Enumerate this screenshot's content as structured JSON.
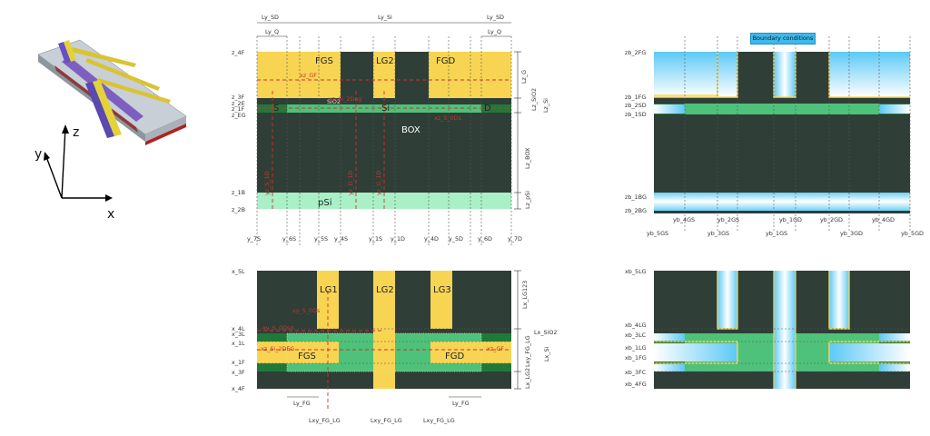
{
  "boundary_badge": "Boundary conditions",
  "axes3d": {
    "y": "y",
    "z": "z",
    "x": "x"
  },
  "cross": {
    "top_dims": {
      "ly_sd_l": "Ly_SD",
      "ly_si": "Ly_Si",
      "ly_sd_r": "Ly_SD",
      "ly_q_l": "Ly_Q",
      "ly_q_r": "Ly_Q"
    },
    "z_labels": {
      "z4f": "z_4F",
      "z3f": "z_3F",
      "z2e": "z_2E",
      "z1f": "z_1F",
      "zeg": "z_EG",
      "z1b": "z_1B",
      "z2b": "z_2B"
    },
    "regions": {
      "fgs": "FGS",
      "lg2": "LG2",
      "fgd": "FGD",
      "sio2": "SiO2",
      "s": "S",
      "si": "Si",
      "d": "D",
      "box": "BOX",
      "psi": "pSi"
    },
    "right_dims": {
      "lzg": "Lz_G",
      "lzsio2": "Lz_SiO2",
      "lzsi": "Lz_Si",
      "lzbox": "Lz_BOX",
      "lzpsi": "Lz_pSi"
    },
    "red": {
      "xzgf": "xz_GF",
      "e1": "xz_S_0Ds",
      "e2": "xz_Si_2Deg",
      "v1": "yz_S_1D",
      "v2": "yz_G_1D",
      "v3": "yz_D_1D"
    }
  },
  "y_ticks": {
    "y7s": "y_7S",
    "y6s": "y_6S",
    "y5s": "y_5S",
    "y4s": "y_4S",
    "y1s": "y_1S",
    "y1d": "y_1D",
    "y4d": "y_4D",
    "y5d": "y_5D",
    "y6d": "y_6D",
    "y7d": "y_7D"
  },
  "plan": {
    "x_labels": {
      "x5l": "x_5L",
      "x4l": "x_4L",
      "x3l": "x_3L",
      "x1l": "x_1L",
      "x1f": "x_1F",
      "x3f": "x_3F",
      "x4f": "x_4F"
    },
    "regions": {
      "lg1": "LG1",
      "lg2": "LG2",
      "lg3": "LG3",
      "fgs": "FGS",
      "fgd": "FGD"
    },
    "right_dims": {
      "lxlg123": "Lx_LG123",
      "lxsio2": "Lx_SiO2",
      "lxyfglg": "Lxy_FG_LG",
      "lxsi": "Lx_Si",
      "lxlg2": "Lx_LG2"
    },
    "red": {
      "r1": "xy_S_0Ds",
      "r2": "xy_S_0Dsd",
      "r3": "xz_Si_2DEG",
      "r4": "xz_GF"
    },
    "bottom_dims": {
      "lyfg_l": "Ly_FG",
      "lyfg_r": "Ly_FG",
      "lxy_l": "Lxy_FG_LG",
      "lxy_m": "Lxy_FG_LG",
      "lxy_r": "Lxy_FG_LG"
    }
  },
  "bc_z": {
    "zb2fg": "zb_2FG",
    "zb1fg": "zb_1FG",
    "zb2sd": "zb_2SD",
    "zb1sd": "zb_1SD",
    "zb1bg": "zb_1BG",
    "zb2bg": "zb_2BG"
  },
  "bc_y": {
    "row1": {
      "a": "yb_4GS",
      "b": "yb_2GS",
      "c": "yb_1GD",
      "d": "yb_2GD",
      "e": "yb_4GD"
    },
    "row2": {
      "a": "yb_5GS",
      "b": "yb_3GS",
      "c": "yb_1GS",
      "d": "yb_3GD",
      "e": "yb_5GD"
    }
  },
  "bc_x": {
    "xb5lg": "xb_5LG",
    "xb4lg": "xb_4LG",
    "xb3lc": "xb_3LC",
    "xb1lg": "xb_1LG",
    "xb1fg": "xb_1FG",
    "xb3fc": "xb_3FC",
    "xb4fg": "xb_4FG"
  }
}
